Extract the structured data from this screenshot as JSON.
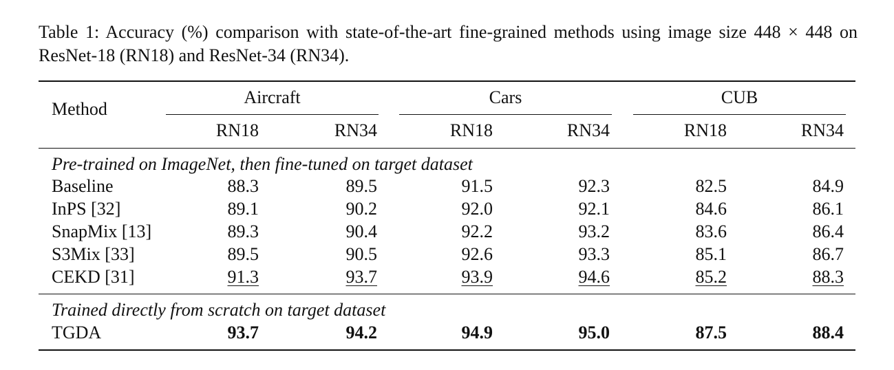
{
  "caption": {
    "prefix": "Table 1:",
    "line1_text": "Accuracy (%) comparison with state-of-the-art fine-grained methods using image size",
    "size_expr": "448 × 448",
    "line2_text": "on ResNet-18 (RN18) and ResNet-34 (RN34)."
  },
  "table": {
    "method_header": "Method",
    "datasets": [
      "Aircraft",
      "Cars",
      "CUB"
    ],
    "backbones": [
      "RN18",
      "RN34",
      "RN18",
      "RN34",
      "RN18",
      "RN34"
    ],
    "section1_title": "Pre-trained on ImageNet, then fine-tuned on target dataset",
    "section1_rows": [
      {
        "method": "Baseline",
        "values": [
          "88.3",
          "89.5",
          "91.5",
          "92.3",
          "82.5",
          "84.9"
        ]
      },
      {
        "method": "InPS [32]",
        "values": [
          "89.1",
          "90.2",
          "92.0",
          "92.1",
          "84.6",
          "86.1"
        ]
      },
      {
        "method": "SnapMix [13]",
        "values": [
          "89.3",
          "90.4",
          "92.2",
          "93.2",
          "83.6",
          "86.4"
        ]
      },
      {
        "method": "S3Mix [33]",
        "values": [
          "89.5",
          "90.5",
          "92.6",
          "93.3",
          "85.1",
          "86.7"
        ]
      },
      {
        "method": "CEKD [31]",
        "values": [
          "91.3",
          "93.7",
          "93.9",
          "94.6",
          "85.2",
          "88.3"
        ],
        "underlined": true
      }
    ],
    "section2_title": "Trained directly from scratch on target dataset",
    "section2_rows": [
      {
        "method": "TGDA",
        "values": [
          "93.7",
          "94.2",
          "94.9",
          "95.0",
          "87.5",
          "88.4"
        ],
        "bold": true
      }
    ]
  }
}
